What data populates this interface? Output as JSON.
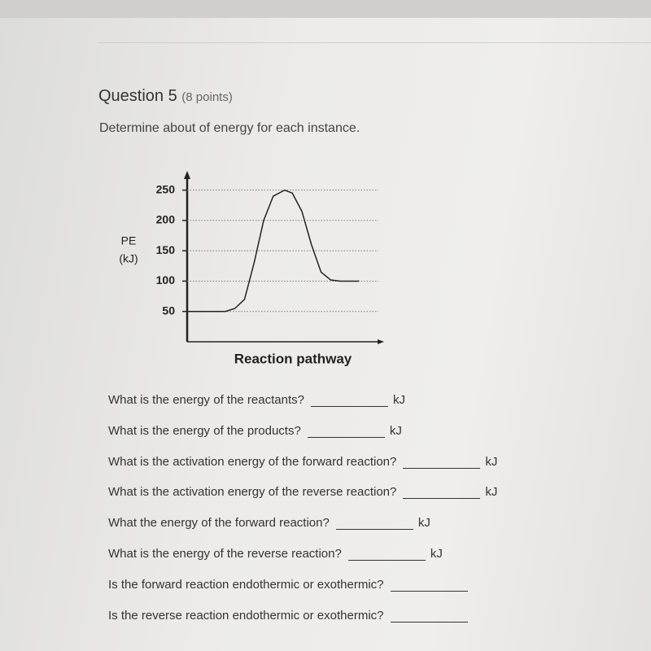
{
  "header": {
    "title": "Question 5",
    "points": "(8 points)"
  },
  "prompt": "Determine about of energy for each instance.",
  "chart_data": {
    "type": "line",
    "ylabel": [
      "PE",
      "(kJ)"
    ],
    "xlabel": "Reaction pathway",
    "x": [
      0,
      2,
      2.5,
      3,
      3.5,
      4,
      4.5,
      5.1,
      5.5,
      6,
      6.5,
      7,
      7.5,
      8,
      9
    ],
    "series": [
      {
        "color": "#222222",
        "values": [
          50,
          50,
          55,
          70,
          130,
          200,
          240,
          250,
          245,
          215,
          160,
          115,
          102,
          100,
          100
        ]
      }
    ],
    "xlim": [
      0,
      10
    ],
    "ylim": [
      0,
      275
    ],
    "yticks": [
      50,
      100,
      150,
      200,
      250
    ],
    "grid": true
  },
  "questions": [
    {
      "text": "What is the energy of the reactants?",
      "unit": "kJ"
    },
    {
      "text": "What is the energy of the products?",
      "unit": "kJ"
    },
    {
      "text": "What is the activation energy of the forward reaction?",
      "unit": "kJ"
    },
    {
      "text": "What is the activation energy of the reverse reaction?",
      "unit": "kJ"
    },
    {
      "text": "What the energy of the forward reaction?",
      "unit": "kJ"
    },
    {
      "text": "What is the energy of the reverse reaction?",
      "unit": "kJ"
    },
    {
      "text": "Is the forward reaction endothermic or exothermic?"
    },
    {
      "text": "Is the reverse reaction endothermic or exothermic?"
    }
  ]
}
